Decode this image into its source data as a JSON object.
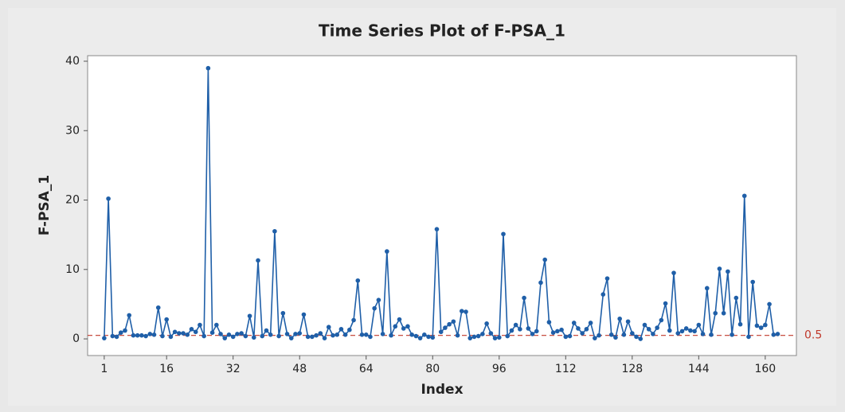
{
  "chart_data": {
    "type": "line",
    "title": "Time Series Plot of F-PSA_1",
    "xlabel": "Index",
    "ylabel": "F-PSA_1",
    "x": [
      1,
      2,
      3,
      4,
      5,
      6,
      7,
      8,
      9,
      10,
      11,
      12,
      13,
      14,
      15,
      16,
      17,
      18,
      19,
      20,
      21,
      22,
      23,
      24,
      25,
      26,
      27,
      28,
      29,
      30,
      31,
      32,
      33,
      34,
      35,
      36,
      37,
      38,
      39,
      40,
      41,
      42,
      43,
      44,
      45,
      46,
      47,
      48,
      49,
      50,
      51,
      52,
      53,
      54,
      55,
      56,
      57,
      58,
      59,
      60,
      61,
      62,
      63,
      64,
      65,
      66,
      67,
      68,
      69,
      70,
      71,
      72,
      73,
      74,
      75,
      76,
      77,
      78,
      79,
      80,
      81,
      82,
      83,
      84,
      85,
      86,
      87,
      88,
      89,
      90,
      91,
      92,
      93,
      94,
      95,
      96,
      97,
      98,
      99,
      100,
      101,
      102,
      103,
      104,
      105,
      106,
      107,
      108,
      109,
      110,
      111,
      112,
      113,
      114,
      115,
      116,
      117,
      118,
      119,
      120,
      121,
      122,
      123,
      124,
      125,
      126,
      127,
      128,
      129,
      130,
      131,
      132,
      133,
      134,
      135,
      136,
      137,
      138,
      139,
      140,
      141,
      142,
      143,
      144,
      145,
      146,
      147,
      148,
      149,
      150,
      151,
      152,
      153,
      154,
      155,
      156,
      157,
      158,
      159,
      160,
      161,
      162,
      163
    ],
    "series": [
      {
        "name": "F-PSA_1",
        "color": "#1f5fa8",
        "values": [
          0.1,
          20.2,
          0.4,
          0.3,
          0.9,
          1.2,
          3.4,
          0.5,
          0.5,
          0.5,
          0.4,
          0.7,
          0.6,
          4.5,
          0.4,
          2.8,
          0.3,
          1.0,
          0.8,
          0.8,
          0.6,
          1.4,
          1.0,
          2.0,
          0.4,
          39.0,
          0.9,
          2.0,
          0.7,
          0.1,
          0.6,
          0.3,
          0.7,
          0.8,
          0.4,
          3.3,
          0.2,
          11.3,
          0.4,
          1.2,
          0.6,
          15.5,
          0.4,
          3.7,
          0.7,
          0.1,
          0.7,
          0.8,
          3.5,
          0.3,
          0.3,
          0.5,
          0.8,
          0.1,
          1.7,
          0.5,
          0.6,
          1.4,
          0.6,
          1.3,
          2.7,
          8.4,
          0.6,
          0.6,
          0.3,
          4.4,
          5.6,
          0.7,
          12.6,
          0.5,
          1.8,
          2.8,
          1.5,
          1.8,
          0.6,
          0.4,
          0.1,
          0.6,
          0.3,
          0.2,
          15.8,
          1.0,
          1.6,
          2.1,
          2.5,
          0.5,
          4.0,
          3.9,
          0.1,
          0.3,
          0.4,
          0.7,
          2.2,
          0.8,
          0.1,
          0.2,
          15.1,
          0.4,
          1.2,
          2.0,
          1.4,
          5.9,
          1.5,
          0.7,
          1.1,
          8.1,
          11.4,
          2.4,
          0.9,
          1.1,
          1.3,
          0.3,
          0.4,
          2.3,
          1.5,
          0.8,
          1.4,
          2.3,
          0.1,
          0.5,
          6.4,
          8.7,
          0.6,
          0.2,
          2.9,
          0.6,
          2.5,
          0.8,
          0.3,
          0.0,
          2.0,
          1.4,
          0.7,
          1.6,
          2.7,
          5.1,
          1.2,
          9.5,
          0.8,
          1.1,
          1.5,
          1.2,
          1.1,
          2.0,
          0.7,
          7.3,
          0.6,
          3.7,
          10.1,
          3.7,
          9.7,
          0.6,
          5.9,
          2.1,
          20.6,
          0.3,
          8.2,
          1.9,
          1.6,
          2.0,
          5.0,
          0.6,
          0.7
        ]
      }
    ],
    "reference_line": {
      "value": 0.5,
      "color": "#c0392b"
    },
    "xlim": [
      -3,
      167.5
    ],
    "ylim": [
      -2.4,
      40.8
    ],
    "xticks": [
      1,
      16,
      32,
      48,
      64,
      80,
      96,
      112,
      128,
      144,
      160
    ],
    "yticks": [
      0,
      10,
      20,
      30,
      40
    ]
  }
}
